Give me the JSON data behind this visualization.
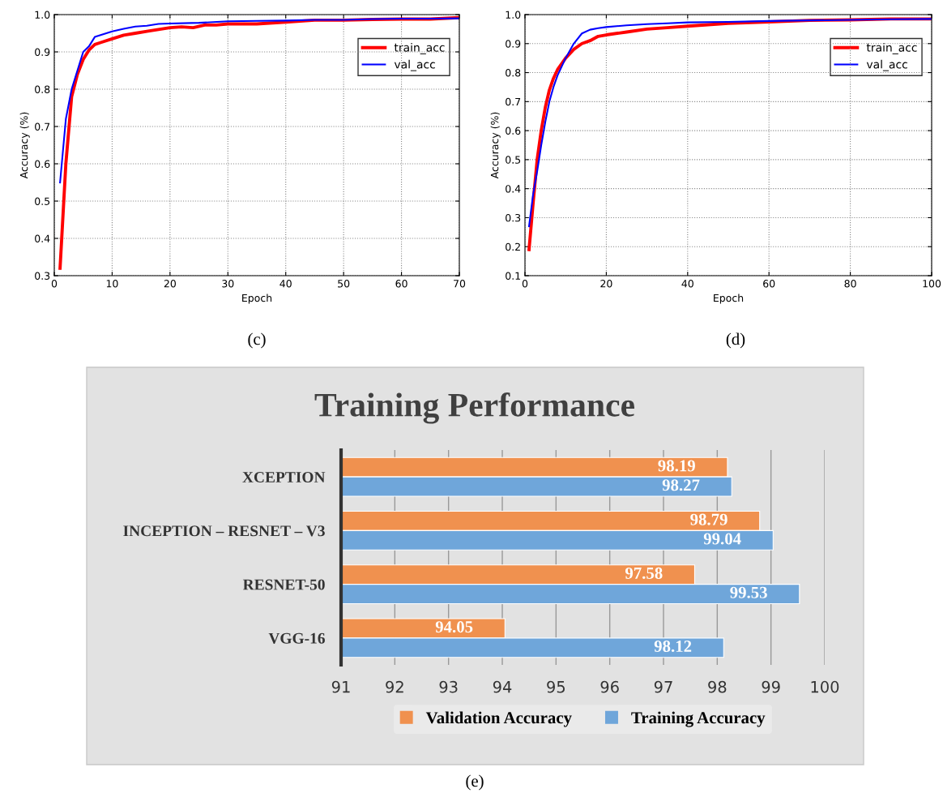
{
  "chart_data": [
    {
      "type": "line",
      "xlabel": "Epoch",
      "ylabel": "Accuracy (%)",
      "xlim": [
        0,
        70
      ],
      "ylim": [
        0.3,
        1.0
      ],
      "xticks": [
        0,
        10,
        20,
        30,
        40,
        50,
        60,
        70
      ],
      "yticks": [
        0.3,
        0.4,
        0.5,
        0.6,
        0.7,
        0.8,
        0.9,
        {
          "value": 1.0,
          "label": "1.0"
        }
      ],
      "grid": true,
      "legend": "top right",
      "annotations": [
        "(c)"
      ],
      "series": [
        {
          "name": "train_acc",
          "color": "#ff0000",
          "x": [
            1,
            2,
            3,
            4,
            5,
            6,
            7,
            8,
            10,
            12,
            14,
            16,
            18,
            20,
            22,
            24,
            26,
            28,
            30,
            35,
            40,
            45,
            50,
            55,
            60,
            65,
            70
          ],
          "values": [
            0.32,
            0.6,
            0.78,
            0.84,
            0.88,
            0.905,
            0.92,
            0.925,
            0.935,
            0.945,
            0.95,
            0.955,
            0.96,
            0.965,
            0.967,
            0.965,
            0.972,
            0.972,
            0.975,
            0.975,
            0.98,
            0.985,
            0.985,
            0.987,
            0.988,
            0.988,
            0.992
          ]
        },
        {
          "name": "val_acc",
          "color": "#0000ff",
          "x": [
            1,
            2,
            3,
            4,
            5,
            6,
            7,
            8,
            10,
            12,
            14,
            16,
            18,
            20,
            25,
            30,
            35,
            40,
            45,
            50,
            55,
            60,
            65,
            70
          ],
          "values": [
            0.55,
            0.72,
            0.8,
            0.85,
            0.9,
            0.915,
            0.94,
            0.945,
            0.955,
            0.962,
            0.968,
            0.97,
            0.975,
            0.976,
            0.978,
            0.982,
            0.983,
            0.984,
            0.986,
            0.986,
            0.988,
            0.989,
            0.989,
            0.99
          ]
        }
      ]
    },
    {
      "type": "line",
      "xlabel": "Epoch",
      "ylabel": "Accuracy (%)",
      "xlim": [
        0,
        100
      ],
      "ylim": [
        0.1,
        1.0
      ],
      "xticks": [
        0,
        20,
        40,
        60,
        80,
        100
      ],
      "yticks": [
        0.1,
        0.2,
        0.3,
        0.4,
        0.5,
        0.6,
        0.7,
        0.8,
        0.9,
        {
          "value": 1.0,
          "label": "1.0"
        }
      ],
      "grid": true,
      "legend": "top right",
      "annotations": [
        "(d)"
      ],
      "series": [
        {
          "name": "train_acc",
          "color": "#ff0000",
          "x": [
            1,
            2,
            3,
            4,
            5,
            6,
            7,
            8,
            10,
            12,
            14,
            16,
            18,
            20,
            25,
            30,
            35,
            40,
            45,
            50,
            60,
            70,
            80,
            90,
            100
          ],
          "values": [
            0.19,
            0.35,
            0.5,
            0.6,
            0.68,
            0.74,
            0.78,
            0.81,
            0.85,
            0.88,
            0.9,
            0.91,
            0.925,
            0.93,
            0.94,
            0.95,
            0.955,
            0.96,
            0.965,
            0.97,
            0.975,
            0.98,
            0.982,
            0.985,
            0.985
          ]
        },
        {
          "name": "val_acc",
          "color": "#0000ff",
          "x": [
            1,
            2,
            3,
            4,
            5,
            6,
            7,
            8,
            10,
            12,
            14,
            16,
            18,
            20,
            25,
            30,
            35,
            40,
            50,
            60,
            70,
            80,
            90,
            100
          ],
          "values": [
            0.27,
            0.38,
            0.46,
            0.55,
            0.63,
            0.7,
            0.75,
            0.79,
            0.85,
            0.9,
            0.935,
            0.948,
            0.953,
            0.957,
            0.963,
            0.967,
            0.97,
            0.973,
            0.975,
            0.978,
            0.98,
            0.982,
            0.984,
            0.985
          ]
        }
      ]
    },
    {
      "type": "bar",
      "orientation": "horizontal",
      "title": "Training Performance",
      "categories": [
        "XCEPTION",
        "INCEPTION – RESNET – V3",
        "RESNET-50",
        "VGG-16"
      ],
      "xlim": [
        91,
        100
      ],
      "xticks": [
        91,
        92,
        93,
        94,
        95,
        96,
        97,
        98,
        99,
        100
      ],
      "grid": "x",
      "legend": "bottom",
      "data_labels": true,
      "annotations": [
        "(e)"
      ],
      "series": [
        {
          "name": "Validation Accuracy",
          "color": "#f0914f",
          "values": [
            98.19,
            98.79,
            97.58,
            94.05
          ]
        },
        {
          "name": "Training Accuracy",
          "color": "#6fa6da",
          "values": [
            98.27,
            99.04,
            99.53,
            98.12
          ]
        }
      ]
    }
  ]
}
